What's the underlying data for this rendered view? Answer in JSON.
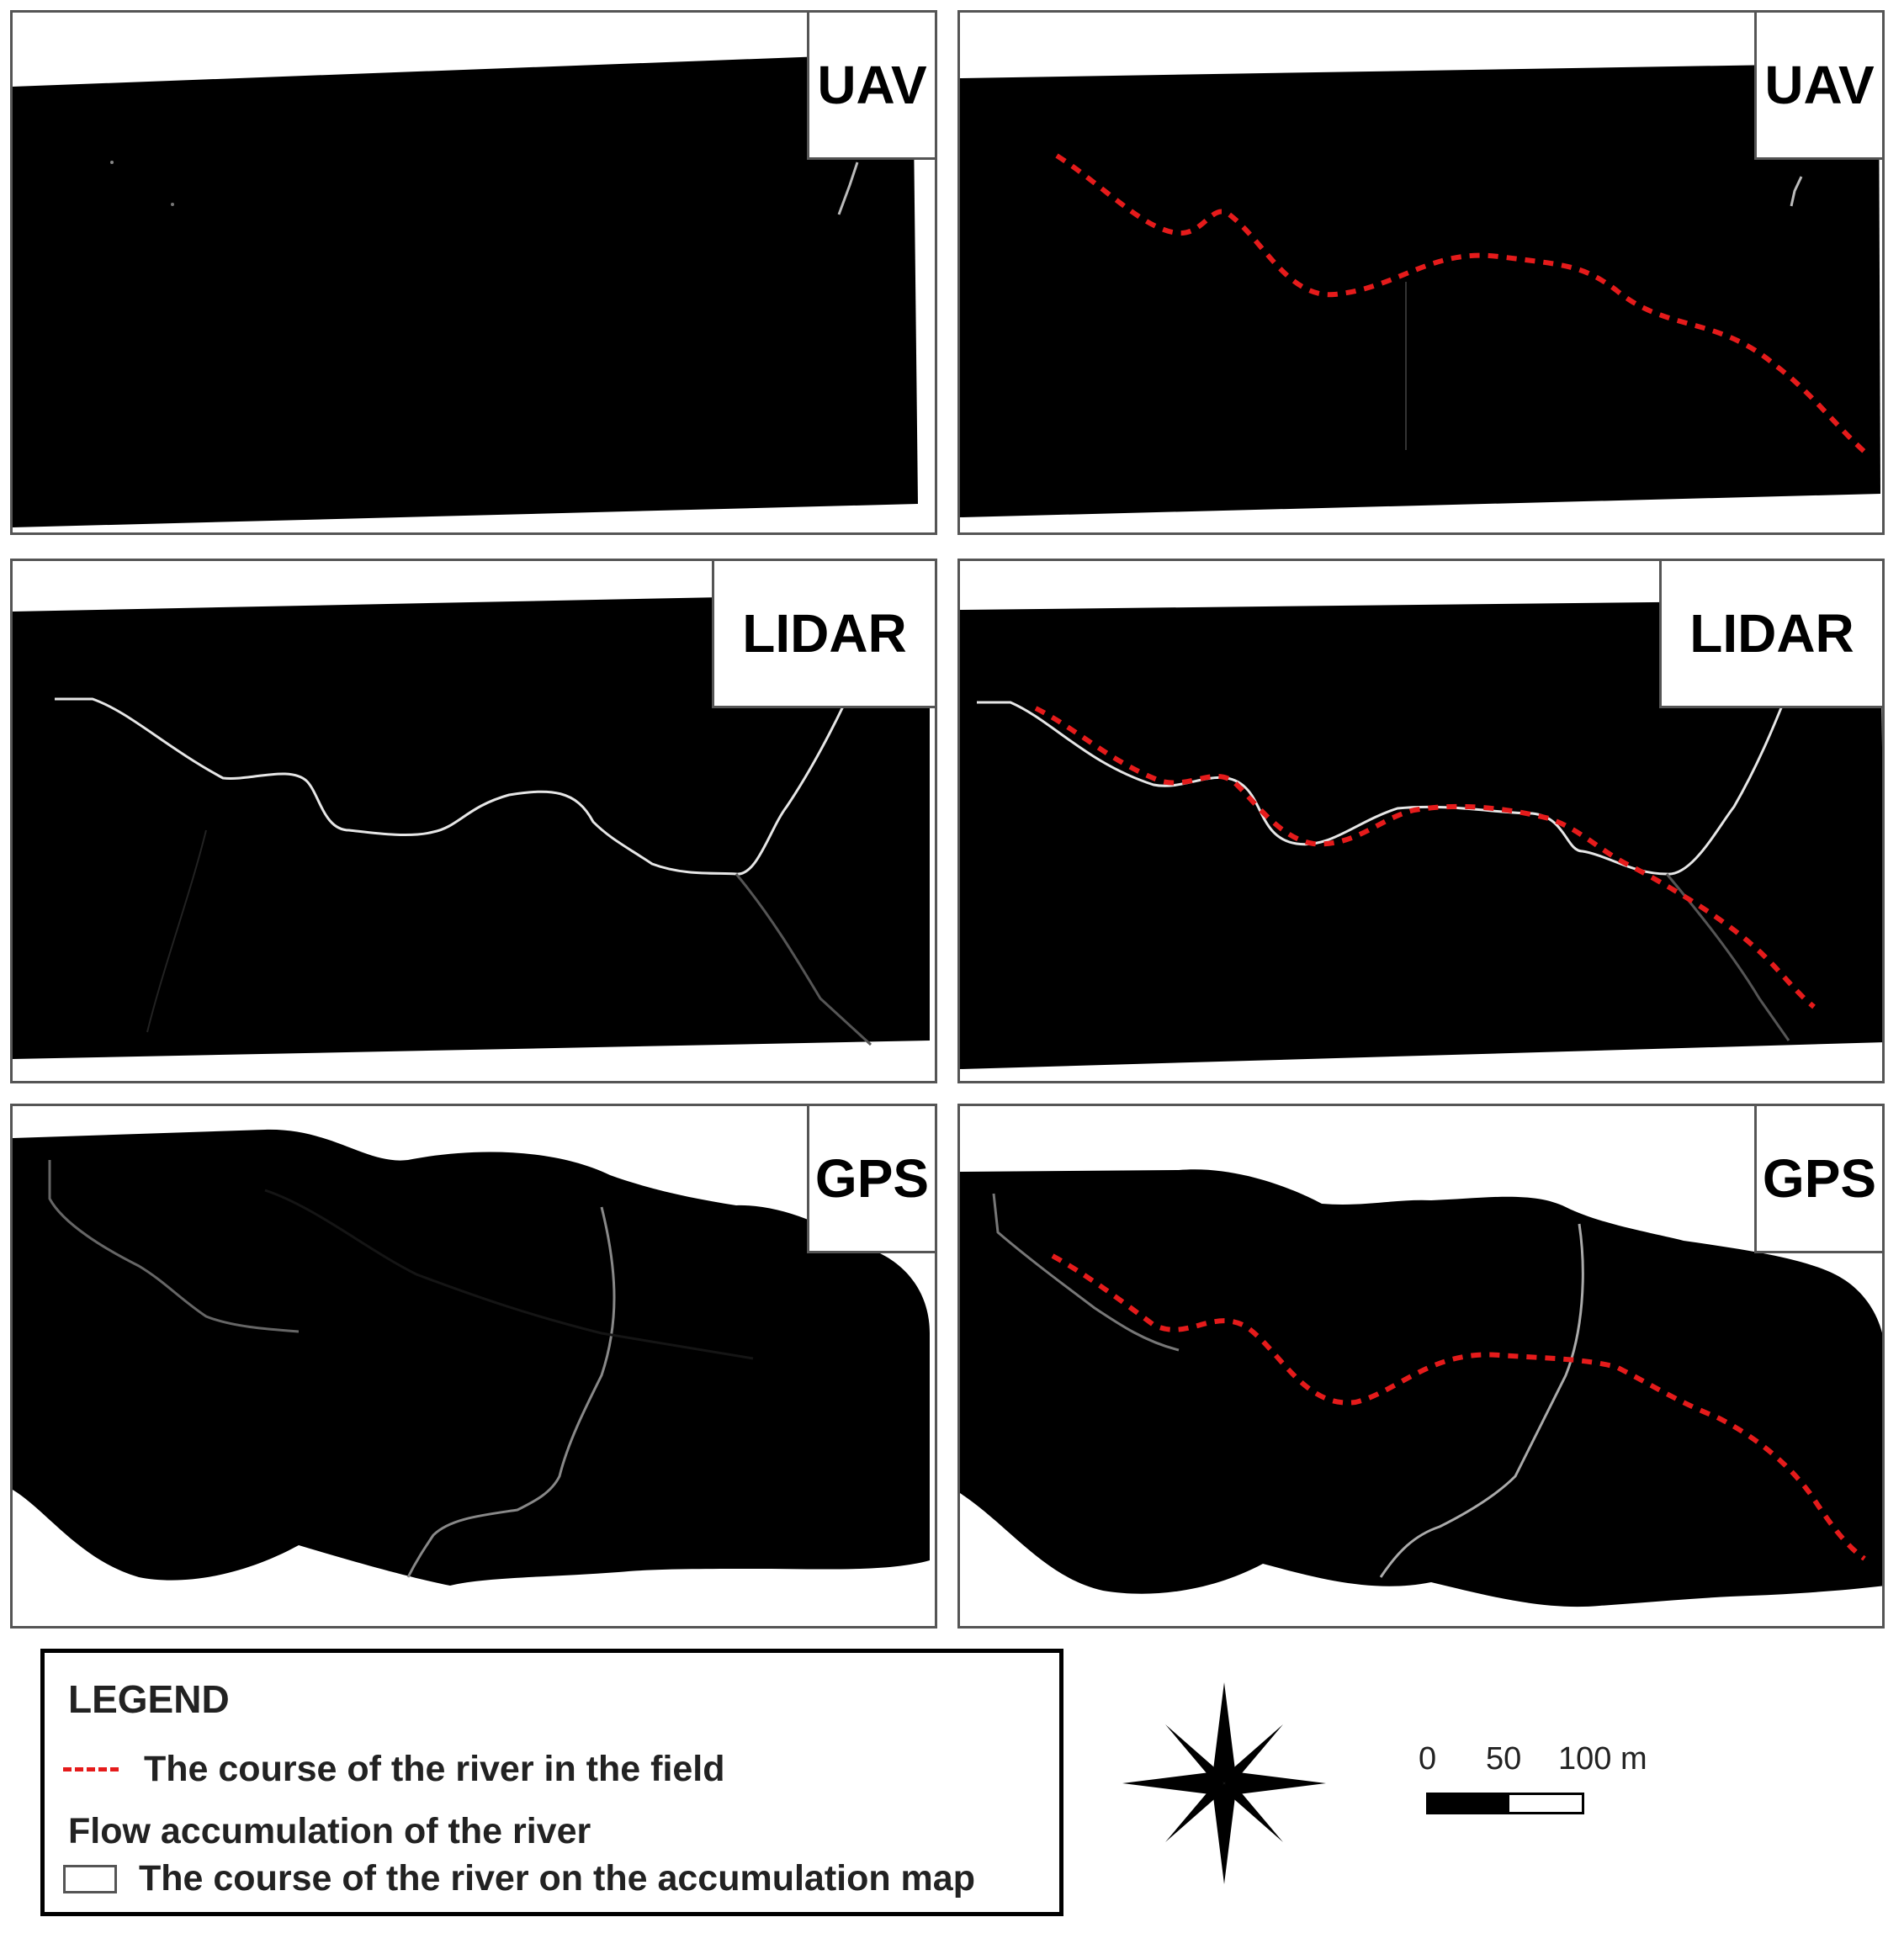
{
  "panels": {
    "uav_left": {
      "label": "UAV"
    },
    "uav_right": {
      "label": "UAV"
    },
    "lidar_left": {
      "label": "LIDAR"
    },
    "lidar_right": {
      "label": "LIDAR"
    },
    "gps_left": {
      "label": "GPS"
    },
    "gps_right": {
      "label": "GPS"
    }
  },
  "legend": {
    "title": "LEGEND",
    "field_course": "The course of the river in the field",
    "flow_accumulation": "Flow accumulation of the river",
    "accumulation_course": "The course of the river on the accumulation map"
  },
  "scale": {
    "tick0": "0",
    "tick1": "50",
    "tick2": "100 m"
  },
  "icons": {
    "north": "compass-star-icon"
  },
  "colors": {
    "field_course": "#e51b1b",
    "raster": "#000000",
    "accumulation": "#ffffff"
  }
}
